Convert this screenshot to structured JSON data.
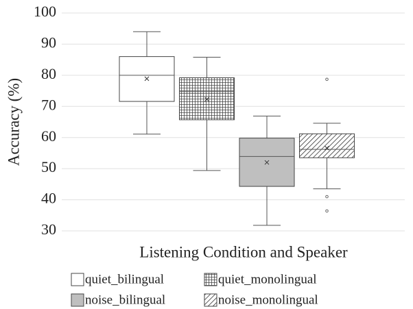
{
  "chart_data": {
    "type": "box",
    "x_label": "Listening Condition and Speaker",
    "y_label": "Accuracy (%)",
    "ylim": [
      30,
      100
    ],
    "yticks": [
      30,
      40,
      50,
      60,
      70,
      80,
      90,
      100
    ],
    "grid": true,
    "legend": "bottom",
    "series": [
      {
        "name": "quiet_bilingual",
        "pattern": "none",
        "color": "#ffffff",
        "whisker_low": 61.1,
        "q1": 71.6,
        "median": 80,
        "q3": 86,
        "whisker_high": 94,
        "mean": 78.9,
        "outliers": []
      },
      {
        "name": "quiet_monolingual",
        "pattern": "grid",
        "color": "#ffffff",
        "whisker_low": 49.4,
        "q1": 65.7,
        "median": 74.7,
        "q3": 79.2,
        "whisker_high": 85.8,
        "mean": 72.3,
        "outliers": []
      },
      {
        "name": "noise_bilingual",
        "pattern": "none",
        "color": "#bfbfbf",
        "whisker_low": 31.8,
        "q1": 44.3,
        "median": 53.9,
        "q3": 59.8,
        "whisker_high": 66.9,
        "mean": 52,
        "outliers": []
      },
      {
        "name": "noise_monolingual",
        "pattern": "diagonal",
        "color": "#ffffff",
        "whisker_low": 43.5,
        "q1": 53.5,
        "median": 56.2,
        "q3": 61.2,
        "whisker_high": 64.6,
        "mean": 56.6,
        "outliers": [
          78.7,
          41,
          36.4
        ]
      }
    ]
  }
}
